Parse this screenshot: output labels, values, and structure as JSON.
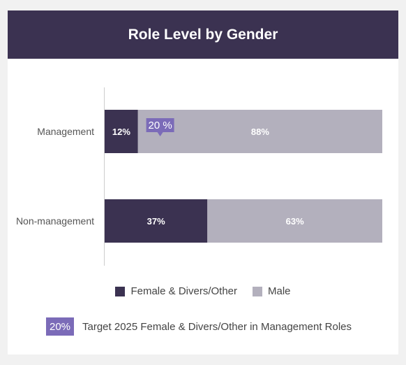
{
  "header": {
    "title": "Role Level by Gender"
  },
  "colors": {
    "female": "#3b3251",
    "male": "#b3b0bd",
    "target": "#7b6bb8",
    "header": "#3b3251"
  },
  "chart_data": {
    "type": "bar",
    "orientation": "horizontal",
    "stacked": true,
    "normalized": true,
    "categories": [
      "Management",
      "Non-management"
    ],
    "series": [
      {
        "name": "Female & Divers/Other",
        "values": [
          12,
          37
        ],
        "labels": [
          "12%",
          "37%"
        ]
      },
      {
        "name": "Male",
        "values": [
          88,
          63
        ],
        "labels": [
          "88%",
          "63%"
        ]
      }
    ],
    "xlim": [
      0,
      100
    ],
    "grid": false,
    "legend_position": "bottom",
    "annotation": {
      "category": "Management",
      "value": 20,
      "label": "20 %"
    }
  },
  "legend": {
    "female_label": "Female & Divers/Other",
    "male_label": "Male"
  },
  "target": {
    "badge": "20%",
    "text": "Target 2025 Female & Divers/Other in Management Roles"
  }
}
